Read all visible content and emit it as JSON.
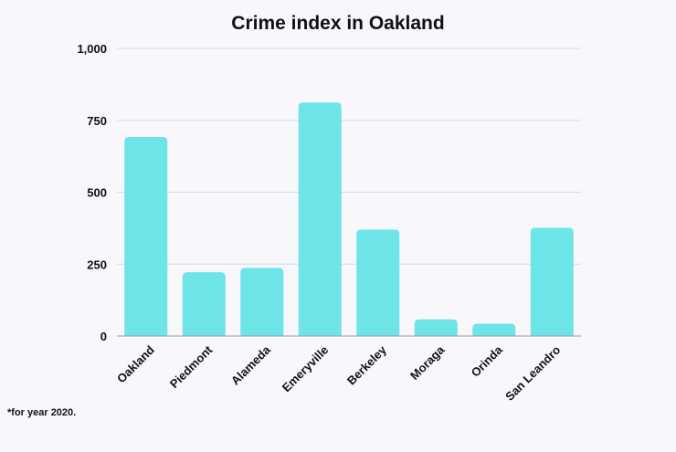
{
  "chart_data": {
    "type": "bar",
    "title": "Crime index in Oakland",
    "categories": [
      "Oakland",
      "Piedmont",
      "Alameda",
      "Emeryville",
      "Berkeley",
      "Moraga",
      "Orinda",
      "San Leandro"
    ],
    "values": [
      692,
      222,
      237,
      812,
      370,
      58,
      43,
      376
    ],
    "xlabel": "",
    "ylabel": "",
    "ylim": [
      0,
      1000
    ],
    "yticks": [
      0,
      250,
      500,
      750,
      1000
    ],
    "ytick_labels": [
      "0",
      "250",
      "500",
      "750",
      "1,000"
    ],
    "grid": true,
    "legend": "none",
    "bar_color": "#6ce4e8",
    "grid_color": "#d8d8e4",
    "background_color": "#f7f7fc"
  },
  "footnote": "*for year 2020."
}
